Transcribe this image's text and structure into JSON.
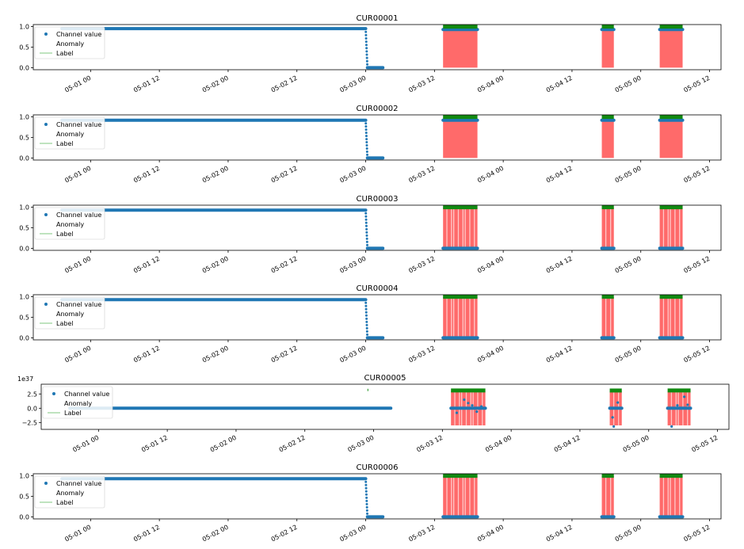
{
  "chart_data": [
    {
      "type": "scatter",
      "title": "CUR00001",
      "ylim": [
        -0.05,
        1.05
      ],
      "yticks": [
        "1.0",
        "0.5",
        "0.0"
      ],
      "ytick_values": [
        1.0,
        0.5,
        0.0
      ],
      "y_offset_label": "",
      "xticks": [
        "05-01 00",
        "05-01 12",
        "05-02 00",
        "05-02 12",
        "05-03 00",
        "05-03 12",
        "05-04 00",
        "05-04 12",
        "05-05 00",
        "05-05 12"
      ],
      "xtick_values_h": [
        0,
        12,
        24,
        36,
        48,
        60,
        72,
        84,
        96,
        108
      ],
      "xlim_h": [
        -10,
        110
      ],
      "legend": [
        "Channel value",
        "Anomaly",
        "Label"
      ],
      "series": [
        {
          "name": "Channel value",
          "kind": "points",
          "segments": [
            {
              "x_start": -5,
              "x_end": 48,
              "y": 0.95,
              "note": "dense dots"
            },
            {
              "x_start": 48,
              "x_end": 48.3,
              "y_from": 0.95,
              "y_to": 0.0,
              "note": "sparse drop"
            },
            {
              "x_start": 48.3,
              "x_end": 51,
              "y": 0.0
            },
            {
              "x_start": 61.5,
              "x_end": 67.5,
              "y": 0.93
            },
            {
              "x_start": 89.2,
              "x_end": 91.3,
              "y": 0.93
            },
            {
              "x_start": 99.3,
              "x_end": 103.3,
              "y": 0.93
            }
          ]
        },
        {
          "name": "Anomaly",
          "kind": "spans",
          "spans": [
            [
              61.5,
              67.5
            ],
            [
              89.2,
              91.3
            ],
            [
              99.3,
              103.3
            ]
          ],
          "y_top": 0.95,
          "style": "solid"
        },
        {
          "name": "Label",
          "kind": "spans",
          "spans": [
            [
              61.5,
              67.5
            ],
            [
              89.2,
              91.3
            ],
            [
              99.3,
              103.3
            ]
          ],
          "y": 1.0
        }
      ]
    },
    {
      "type": "scatter",
      "title": "CUR00002",
      "ylim": [
        -0.05,
        1.05
      ],
      "yticks": [
        "1.0",
        "0.5",
        "0.0"
      ],
      "ytick_values": [
        1.0,
        0.5,
        0.0
      ],
      "y_offset_label": "",
      "xticks": [
        "05-01 00",
        "05-01 12",
        "05-02 00",
        "05-02 12",
        "05-03 00",
        "05-03 12",
        "05-04 00",
        "05-04 12",
        "05-05 00",
        "05-05 12"
      ],
      "xtick_values_h": [
        0,
        12,
        24,
        36,
        48,
        60,
        72,
        84,
        96,
        108
      ],
      "xlim_h": [
        -10,
        110
      ],
      "legend": [
        "Channel value",
        "Anomaly",
        "Label"
      ],
      "series": [
        {
          "name": "Channel value",
          "kind": "points",
          "segments": [
            {
              "x_start": -5,
              "x_end": 48,
              "y": 0.92
            },
            {
              "x_start": 48,
              "x_end": 48.3,
              "y_from": 0.92,
              "y_to": 0.0
            },
            {
              "x_start": 48.3,
              "x_end": 51,
              "y": 0.0
            },
            {
              "x_start": 61.5,
              "x_end": 67.5,
              "y": 0.92
            },
            {
              "x_start": 89.2,
              "x_end": 91.3,
              "y": 0.92
            },
            {
              "x_start": 99.3,
              "x_end": 103.3,
              "y": 0.92
            }
          ]
        },
        {
          "name": "Anomaly",
          "kind": "spans",
          "spans": [
            [
              61.5,
              67.5
            ],
            [
              89.2,
              91.3
            ],
            [
              99.3,
              103.3
            ]
          ],
          "y_top": 0.92,
          "style": "solid"
        },
        {
          "name": "Label",
          "kind": "spans",
          "spans": [
            [
              61.5,
              67.5
            ],
            [
              89.2,
              91.3
            ],
            [
              99.3,
              103.3
            ]
          ],
          "y": 1.0
        }
      ]
    },
    {
      "type": "scatter",
      "title": "CUR00003",
      "ylim": [
        -0.05,
        1.05
      ],
      "yticks": [
        "1.0",
        "0.5",
        "0.0"
      ],
      "ytick_values": [
        1.0,
        0.5,
        0.0
      ],
      "y_offset_label": "",
      "xticks": [
        "05-01 00",
        "05-01 12",
        "05-02 00",
        "05-02 12",
        "05-03 00",
        "05-03 12",
        "05-04 00",
        "05-04 12",
        "05-05 00",
        "05-05 12"
      ],
      "xtick_values_h": [
        0,
        12,
        24,
        36,
        48,
        60,
        72,
        84,
        96,
        108
      ],
      "xlim_h": [
        -10,
        110
      ],
      "legend": [
        "Channel value",
        "Anomaly",
        "Label"
      ],
      "series": [
        {
          "name": "Channel value",
          "kind": "points",
          "segments": [
            {
              "x_start": -5,
              "x_end": 48,
              "y": 0.93
            },
            {
              "x_start": 48,
              "x_end": 48.3,
              "y_from": 0.93,
              "y_to": 0.0
            },
            {
              "x_start": 48.3,
              "x_end": 51,
              "y": 0.0
            },
            {
              "x_start": 61.5,
              "x_end": 67.5,
              "y": 0.0
            },
            {
              "x_start": 89.2,
              "x_end": 91.3,
              "y": 0.0
            },
            {
              "x_start": 99.3,
              "x_end": 103.3,
              "y": 0.0
            }
          ]
        },
        {
          "name": "Anomaly",
          "kind": "spans",
          "spans": [
            [
              61.5,
              67.5
            ],
            [
              89.2,
              91.3
            ],
            [
              99.3,
              103.3
            ]
          ],
          "y_top": 1.0,
          "style": "striped"
        },
        {
          "name": "Label",
          "kind": "spans",
          "spans": [
            [
              61.5,
              67.5
            ],
            [
              89.2,
              91.3
            ],
            [
              99.3,
              103.3
            ]
          ],
          "y": 1.0
        }
      ]
    },
    {
      "type": "scatter",
      "title": "CUR00004",
      "ylim": [
        -0.05,
        1.05
      ],
      "yticks": [
        "1.0",
        "0.5",
        "0.0"
      ],
      "ytick_values": [
        1.0,
        0.5,
        0.0
      ],
      "y_offset_label": "",
      "xticks": [
        "05-01 00",
        "05-01 12",
        "05-02 00",
        "05-02 12",
        "05-03 00",
        "05-03 12",
        "05-04 00",
        "05-04 12",
        "05-05 00",
        "05-05 12"
      ],
      "xtick_values_h": [
        0,
        12,
        24,
        36,
        48,
        60,
        72,
        84,
        96,
        108
      ],
      "xlim_h": [
        -10,
        110
      ],
      "legend": [
        "Channel value",
        "Anomaly",
        "Label"
      ],
      "series": [
        {
          "name": "Channel value",
          "kind": "points",
          "segments": [
            {
              "x_start": -5,
              "x_end": 48,
              "y": 0.93
            },
            {
              "x_start": 48,
              "x_end": 48.3,
              "y_from": 0.93,
              "y_to": 0.0
            },
            {
              "x_start": 48.3,
              "x_end": 51,
              "y": 0.0
            },
            {
              "x_start": 61.5,
              "x_end": 67.5,
              "y": 0.0
            },
            {
              "x_start": 89.2,
              "x_end": 91.3,
              "y": 0.0
            },
            {
              "x_start": 99.3,
              "x_end": 103.3,
              "y": 0.0
            }
          ]
        },
        {
          "name": "Anomaly",
          "kind": "spans",
          "spans": [
            [
              61.5,
              67.5
            ],
            [
              89.2,
              91.3
            ],
            [
              99.3,
              103.3
            ]
          ],
          "y_top": 1.0,
          "style": "striped"
        },
        {
          "name": "Label",
          "kind": "spans",
          "spans": [
            [
              61.5,
              67.5
            ],
            [
              89.2,
              91.3
            ],
            [
              99.3,
              103.3
            ]
          ],
          "y": 1.0
        }
      ]
    },
    {
      "type": "scatter",
      "title": "CUR00005",
      "ylim": [
        -3.7,
        4.2
      ],
      "yticks": [
        "2.5",
        "0.0",
        "−2.5"
      ],
      "ytick_values": [
        2.5,
        0.0,
        -2.5
      ],
      "y_offset_label": "1e37",
      "xticks": [
        "05-01 00",
        "05-01 12",
        "05-02 00",
        "05-02 12",
        "05-03 00",
        "05-03 12",
        "05-04 00",
        "05-04 12",
        "05-05 00",
        "05-05 12"
      ],
      "xtick_values_h": [
        0,
        12,
        24,
        36,
        48,
        60,
        72,
        84,
        96,
        108
      ],
      "xlim_h": [
        -10,
        110
      ],
      "legend": [
        "Channel value",
        "Anomaly",
        "Label"
      ],
      "series": [
        {
          "name": "Channel value",
          "kind": "points",
          "segments": [
            {
              "x_start": -5,
              "x_end": 51,
              "y": 0.0
            },
            {
              "x_start": 61.5,
              "x_end": 67.5,
              "y": 0.0
            },
            {
              "x_start": 89.2,
              "x_end": 91.3,
              "y": 0.0
            },
            {
              "x_start": 99.3,
              "x_end": 103.3,
              "y": 0.0
            }
          ],
          "outliers": [
            [
              62.5,
              -0.8
            ],
            [
              63.8,
              1.5
            ],
            [
              64.5,
              0.9
            ],
            [
              65.2,
              0.5
            ],
            [
              66.0,
              -0.6
            ],
            [
              66.8,
              0.3
            ],
            [
              89.7,
              -1.6
            ],
            [
              90.6,
              1.0
            ],
            [
              89.9,
              -3.2
            ],
            [
              100.0,
              -3.2
            ],
            [
              101.0,
              0.5
            ],
            [
              102.2,
              2.0
            ],
            [
              102.8,
              0.6
            ]
          ]
        },
        {
          "name": "Anomaly",
          "kind": "spans",
          "spans": [
            [
              61.5,
              67.5
            ],
            [
              89.2,
              91.3
            ],
            [
              99.3,
              103.3
            ]
          ],
          "y_bottom": -3.0,
          "y_top": 3.0,
          "style": "striped"
        },
        {
          "name": "Label",
          "kind": "spans",
          "spans": [
            [
              61.5,
              67.5
            ],
            [
              89.2,
              91.3
            ],
            [
              99.3,
              103.3
            ]
          ],
          "y": 3.1
        },
        {
          "name": "Label",
          "kind": "mark",
          "x": 47,
          "y_from": 3.0,
          "y_to": 3.4
        }
      ]
    },
    {
      "type": "scatter",
      "title": "CUR00006",
      "ylim": [
        -0.05,
        1.05
      ],
      "yticks": [
        "1.0",
        "0.5",
        "0.0"
      ],
      "ytick_values": [
        1.0,
        0.5,
        0.0
      ],
      "y_offset_label": "",
      "xticks": [
        "05-01 00",
        "05-01 12",
        "05-02 00",
        "05-02 12",
        "05-03 00",
        "05-03 12",
        "05-04 00",
        "05-04 12",
        "05-05 00",
        "05-05 12"
      ],
      "xtick_values_h": [
        0,
        12,
        24,
        36,
        48,
        60,
        72,
        84,
        96,
        108
      ],
      "xlim_h": [
        -10,
        110
      ],
      "legend": [
        "Channel value",
        "Anomaly",
        "Label"
      ],
      "series": [
        {
          "name": "Channel value",
          "kind": "points",
          "segments": [
            {
              "x_start": -5,
              "x_end": 48,
              "y": 0.93
            },
            {
              "x_start": 48,
              "x_end": 48.3,
              "y_from": 0.93,
              "y_to": 0.0
            },
            {
              "x_start": 48.3,
              "x_end": 51,
              "y": 0.0
            },
            {
              "x_start": 61.5,
              "x_end": 67.5,
              "y": 0.0
            },
            {
              "x_start": 89.2,
              "x_end": 91.3,
              "y": 0.0
            },
            {
              "x_start": 99.3,
              "x_end": 103.3,
              "y": 0.0
            }
          ]
        },
        {
          "name": "Anomaly",
          "kind": "spans",
          "spans": [
            [
              61.5,
              67.5
            ],
            [
              89.2,
              91.3
            ],
            [
              99.3,
              103.3
            ]
          ],
          "y_top": 1.0,
          "style": "striped"
        },
        {
          "name": "Label",
          "kind": "spans",
          "spans": [
            [
              61.5,
              67.5
            ],
            [
              89.2,
              91.3
            ],
            [
              99.3,
              103.3
            ]
          ],
          "y": 1.0
        }
      ]
    }
  ],
  "colors": {
    "channel": "#1f77b4",
    "anomaly": "#ff6a6a",
    "anomaly_stripe": "#ffc8c8",
    "label": "#118a11",
    "legend_line": "#7fc77f",
    "axis": "#000000"
  }
}
